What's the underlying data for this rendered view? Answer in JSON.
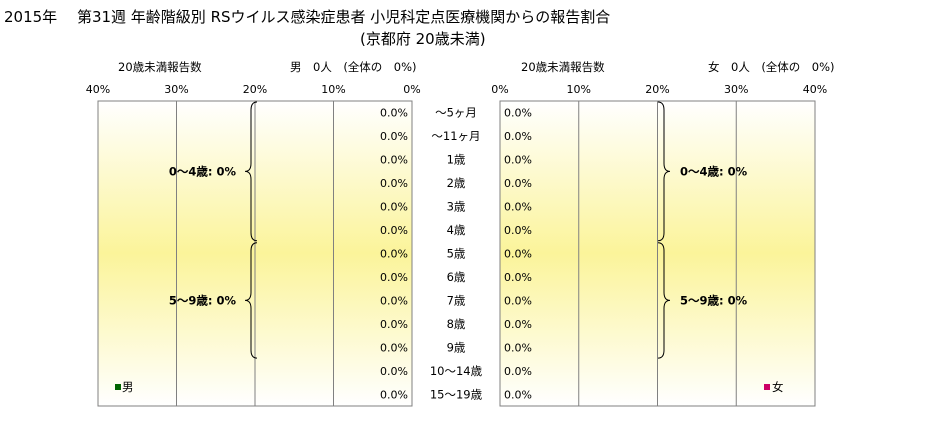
{
  "chart_data": {
    "type": "bar",
    "title": "2015年　 第31週 年齢階級別 RSウイルス感染症患者 小児科定点医療機関からの報告割合",
    "subtitle": "(京都府 20歳未満)",
    "categories": [
      "～5ヶ月",
      "～11ヶ月",
      "1歳",
      "2歳",
      "3歳",
      "4歳",
      "5歳",
      "6歳",
      "7歳",
      "8歳",
      "9歳",
      "10～14歳",
      "15～19歳"
    ],
    "axis_ticks": [
      "40%",
      "30%",
      "20%",
      "10%",
      "0%"
    ],
    "axis_ticks_right": [
      "0%",
      "10%",
      "20%",
      "30%",
      "40%"
    ],
    "xlim": [
      0,
      40
    ],
    "panels": [
      {
        "header_left": "20歳未満報告数",
        "header_right": "男　0人　(全体の　0%)",
        "legend": "男",
        "color": "#006400",
        "values": [
          0,
          0,
          0,
          0,
          0,
          0,
          0,
          0,
          0,
          0,
          0,
          0,
          0
        ],
        "value_labels": [
          "0.0%",
          "0.0%",
          "0.0%",
          "0.0%",
          "0.0%",
          "0.0%",
          "0.0%",
          "0.0%",
          "0.0%",
          "0.0%",
          "0.0%",
          "0.0%",
          "0.0%"
        ],
        "groups": [
          {
            "label": "0～4歳: 0%"
          },
          {
            "label": "5～9歳: 0%"
          }
        ]
      },
      {
        "header_left": "20歳未満報告数",
        "header_right": "女　0人　(全体の　0%)",
        "legend": "女",
        "color": "#cc0066",
        "values": [
          0,
          0,
          0,
          0,
          0,
          0,
          0,
          0,
          0,
          0,
          0,
          0,
          0
        ],
        "value_labels": [
          "0.0%",
          "0.0%",
          "0.0%",
          "0.0%",
          "0.0%",
          "0.0%",
          "0.0%",
          "0.0%",
          "0.0%",
          "0.0%",
          "0.0%",
          "0.0%",
          "0.0%"
        ],
        "groups": [
          {
            "label": "0～4歳: 0%"
          },
          {
            "label": "5～9歳: 0%"
          }
        ]
      }
    ]
  }
}
